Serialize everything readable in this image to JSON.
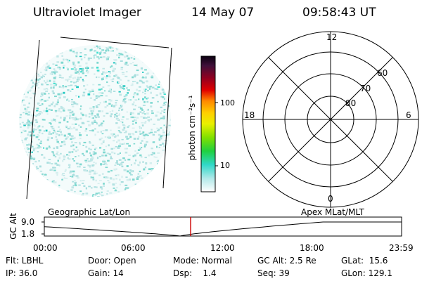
{
  "header": {
    "title": "Ultraviolet Imager",
    "date": "14 May 07",
    "time": "09:58:43 UT"
  },
  "colorbar": {
    "label": "photon cm⁻²s⁻¹",
    "ticks": [
      "100",
      "10"
    ]
  },
  "polar": {
    "mlt_labels": {
      "top": "12",
      "left": "18",
      "right": "6",
      "bottom": "0"
    },
    "lat_labels": [
      "60",
      "70",
      "80"
    ]
  },
  "timeline": {
    "ylabel": "GC Alt",
    "y_ticks": [
      "9.0",
      "1.8"
    ],
    "left_title": "Geographic Lat/Lon",
    "right_title": "Apex  MLat/MLT",
    "x_ticks": [
      "00:00",
      "06:00",
      "12:00",
      "18:00",
      "23:59"
    ],
    "marker_color": "#cc0000"
  },
  "status": {
    "row1": [
      "Flt: LBHL",
      "Door: Open",
      "Mode: Normal",
      "GC Alt: 2.5 Re",
      "GLat:  15.6"
    ],
    "row2": [
      "IP: 36.0",
      "Gain: 14",
      "Dsp:    1.4",
      "Seq: 39",
      "GLon: 129.1"
    ]
  },
  "colors": {
    "colorbar_top": "#100020",
    "colorbar_mid": "#e8f000",
    "colorbar_bottom": "#ffffff",
    "speckle": "#40e0d0"
  }
}
